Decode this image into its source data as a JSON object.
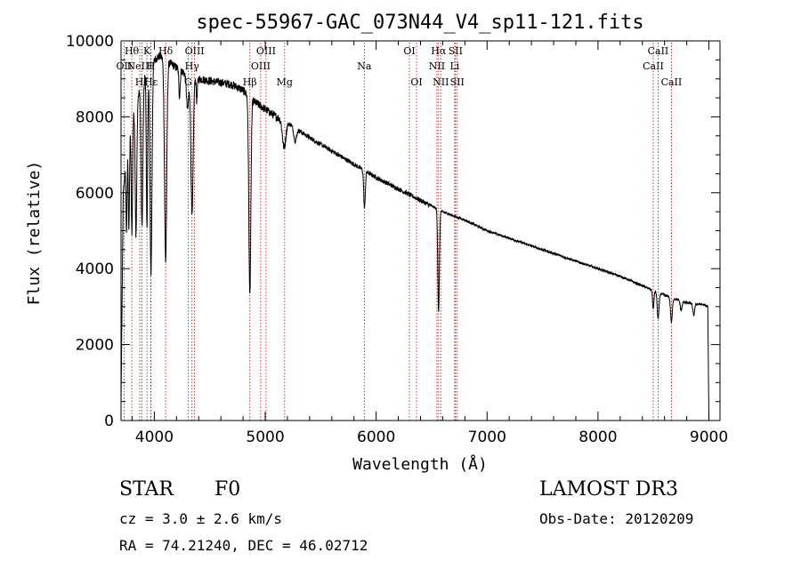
{
  "chart_data": {
    "type": "line",
    "title": "spec-55967-GAC_073N44_V4_sp11-121.fits",
    "xlabel": "Wavelength (Å)",
    "ylabel": "Flux (relative)",
    "xlim": [
      3700,
      9100
    ],
    "ylim": [
      0,
      10000
    ],
    "x_ticks": [
      4000,
      5000,
      6000,
      7000,
      8000,
      9000
    ],
    "y_ticks": [
      0,
      2000,
      4000,
      6000,
      8000,
      10000
    ],
    "x_tick_labels": [
      "4000",
      "5000",
      "6000",
      "7000",
      "8000",
      "9000"
    ],
    "y_tick_labels": [
      "0",
      "2000",
      "4000",
      "6000",
      "8000",
      "10000"
    ],
    "continuum": {
      "x": [
        3700,
        3720,
        3760,
        3800,
        3850,
        3900,
        3950,
        4000,
        4050,
        4100,
        4200,
        4300,
        4400,
        4500,
        4600,
        4700,
        4800,
        4850,
        4900,
        5000,
        5100,
        5200,
        5400,
        5600,
        5800,
        6000,
        6200,
        6400,
        6600,
        6800,
        7000,
        7200,
        7400,
        7600,
        7800,
        8000,
        8200,
        8400,
        8600,
        8800,
        8950,
        8990,
        9000
      ],
      "y": [
        400,
        6000,
        7300,
        8000,
        8500,
        9000,
        9300,
        9500,
        9600,
        9500,
        9300,
        9100,
        9000,
        8950,
        8900,
        8850,
        8700,
        8550,
        8400,
        8200,
        8000,
        7850,
        7450,
        7100,
        6750,
        6400,
        6100,
        5800,
        5500,
        5280,
        5000,
        4800,
        4600,
        4400,
        4200,
        4000,
        3800,
        3550,
        3300,
        3100,
        3050,
        3000,
        0
      ]
    },
    "absorption_lines": [
      {
        "center": 3750,
        "depth": 2000,
        "width": 5
      },
      {
        "center": 3771,
        "depth": 2500,
        "width": 5
      },
      {
        "center": 3798,
        "depth": 3000,
        "width": 6
      },
      {
        "center": 3835,
        "depth": 3500,
        "width": 7
      },
      {
        "center": 3889,
        "depth": 3800,
        "width": 8
      },
      {
        "center": 3934,
        "depth": 4200,
        "width": 6
      },
      {
        "center": 3970,
        "depth": 5500,
        "width": 9
      },
      {
        "center": 4102,
        "depth": 5300,
        "width": 10
      },
      {
        "center": 4227,
        "depth": 700,
        "width": 6
      },
      {
        "center": 4300,
        "depth": 900,
        "width": 10
      },
      {
        "center": 4340,
        "depth": 3700,
        "width": 10
      },
      {
        "center": 4383,
        "depth": 600,
        "width": 5
      },
      {
        "center": 4861,
        "depth": 5200,
        "width": 9
      },
      {
        "center": 5170,
        "depth": 700,
        "width": 15
      },
      {
        "center": 5270,
        "depth": 350,
        "width": 12
      },
      {
        "center": 5895,
        "depth": 1000,
        "width": 7
      },
      {
        "center": 6563,
        "depth": 2700,
        "width": 7
      },
      {
        "center": 8498,
        "depth": 500,
        "width": 6
      },
      {
        "center": 8542,
        "depth": 700,
        "width": 8
      },
      {
        "center": 8662,
        "depth": 650,
        "width": 8
      },
      {
        "center": 8750,
        "depth": 250,
        "width": 8
      },
      {
        "center": 8863,
        "depth": 300,
        "width": 8
      }
    ],
    "line_markers": [
      {
        "wavelength": 3727,
        "row": 1,
        "label": "OII"
      },
      {
        "wavelength": 3797,
        "row": 0,
        "label": "Hθ"
      },
      {
        "wavelength": 3869,
        "row": 1,
        "label": "NeIII"
      },
      {
        "wavelength": 3889,
        "row": 2,
        "label": "Hζ"
      },
      {
        "wavelength": 3934,
        "row": 0,
        "label": "K"
      },
      {
        "wavelength": 3968,
        "row": 1,
        "label": "H"
      },
      {
        "wavelength": 3970,
        "row": 2,
        "label": "Hε"
      },
      {
        "wavelength": 4102,
        "row": 0,
        "label": "Hδ"
      },
      {
        "wavelength": 4305,
        "row": 2,
        "label": "G"
      },
      {
        "wavelength": 4340,
        "row": 1,
        "label": "Hγ"
      },
      {
        "wavelength": 4363,
        "row": 0,
        "label": "OIII"
      },
      {
        "wavelength": 4861,
        "row": 2,
        "label": "Hβ"
      },
      {
        "wavelength": 4959,
        "row": 1,
        "label": "OIII"
      },
      {
        "wavelength": 5007,
        "row": 0,
        "label": "OIII"
      },
      {
        "wavelength": 5175,
        "row": 2,
        "label": "Mg"
      },
      {
        "wavelength": 5893,
        "row": 1,
        "label": "Na"
      },
      {
        "wavelength": 6300,
        "row": 0,
        "label": "OI"
      },
      {
        "wavelength": 6364,
        "row": 2,
        "label": "OI"
      },
      {
        "wavelength": 6548,
        "row": 1,
        "label": "NII"
      },
      {
        "wavelength": 6563,
        "row": 0,
        "label": "Hα"
      },
      {
        "wavelength": 6583,
        "row": 2,
        "label": "NII"
      },
      {
        "wavelength": 6708,
        "row": 1,
        "label": "Li"
      },
      {
        "wavelength": 6716,
        "row": 0,
        "label": "SII"
      },
      {
        "wavelength": 6731,
        "row": 2,
        "label": "SII"
      },
      {
        "wavelength": 8498,
        "row": 1,
        "label": "CaII"
      },
      {
        "wavelength": 8542,
        "row": 0,
        "label": "CaII"
      },
      {
        "wavelength": 8662,
        "row": 2,
        "label": "CaII"
      }
    ],
    "colors": {
      "axes": "#000000",
      "spectrum": "#000000",
      "markers": "#cc0000"
    }
  },
  "info": {
    "object_class": "STAR",
    "subclass": "F0",
    "redshift": "cz = 3.0 ± 2.6 km/s",
    "coordinates": "RA =  74.21240, DEC =  46.02712",
    "survey": "LAMOST DR3",
    "obs_date": "Obs-Date: 20120209"
  }
}
